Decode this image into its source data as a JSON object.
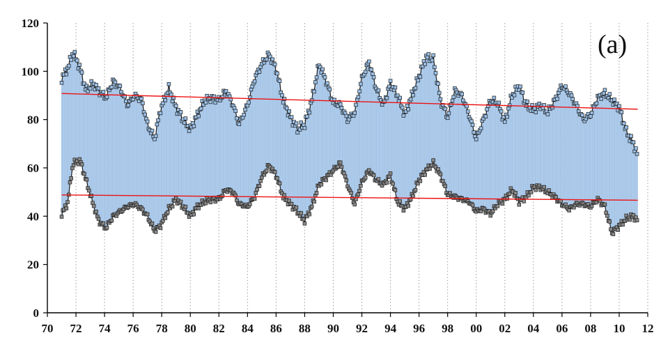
{
  "chart_data": {
    "type": "line",
    "title": "",
    "panel_label": "(a)",
    "xlabel": "",
    "ylabel": "",
    "xlim": [
      1970,
      2012
    ],
    "ylim": [
      0,
      120
    ],
    "x_ticks": [
      1970,
      1972,
      1974,
      1976,
      1978,
      1980,
      1982,
      1984,
      1986,
      1988,
      1990,
      1992,
      1994,
      1996,
      1998,
      2000,
      2002,
      2004,
      2006,
      2008,
      2010,
      2012
    ],
    "x_tick_labels": [
      "70",
      "72",
      "74",
      "76",
      "78",
      "80",
      "82",
      "84",
      "86",
      "88",
      "90",
      "92",
      "94",
      "96",
      "98",
      "00",
      "02",
      "04",
      "06",
      "08",
      "10",
      "12"
    ],
    "y_ticks": [
      0,
      20,
      40,
      60,
      80,
      100,
      120
    ],
    "y_tick_labels": [
      "0",
      "20",
      "40",
      "60",
      "80",
      "100",
      "120"
    ],
    "grid": "vertical dotted lines at x ticks",
    "colors": {
      "upper_fill": "#aecdef",
      "upper_line": "#1a1a1a",
      "upper_marker": "#9cc0e6",
      "lower_marker": "#8a8a8a",
      "trend": "#ee1111",
      "axis": "#000000",
      "grid": "#9a9a9a"
    },
    "series": [
      {
        "name": "upper",
        "x": [
          1971.0,
          1971.4,
          1971.8,
          1972.3,
          1972.7,
          1973.2,
          1973.6,
          1974.1,
          1974.6,
          1975.1,
          1975.6,
          1976.1,
          1976.6,
          1977.0,
          1977.5,
          1977.9,
          1978.5,
          1979.0,
          1979.5,
          1980.0,
          1980.5,
          1981.0,
          1981.5,
          1982.0,
          1982.5,
          1983.0,
          1983.4,
          1984.0,
          1984.5,
          1985.0,
          1985.5,
          1986.0,
          1986.5,
          1987.0,
          1987.5,
          1988.0,
          1988.5,
          1989.0,
          1989.5,
          1990.0,
          1990.5,
          1991.0,
          1991.5,
          1992.0,
          1992.5,
          1993.0,
          1993.5,
          1994.0,
          1994.5,
          1995.0,
          1995.5,
          1996.0,
          1996.5,
          1997.0,
          1997.5,
          1998.0,
          1998.5,
          1999.0,
          1999.5,
          2000.0,
          2000.5,
          2001.0,
          2001.5,
          2002.0,
          2002.5,
          2003.0,
          2003.5,
          2004.0,
          2004.5,
          2005.0,
          2005.5,
          2006.0,
          2006.5,
          2007.0,
          2007.5,
          2008.0,
          2008.5,
          2009.0,
          2009.5,
          2010.0,
          2010.5,
          2011.0,
          2011.3
        ],
        "values": [
          97,
          101,
          108,
          101,
          92,
          95,
          92,
          89,
          96,
          93,
          86,
          90,
          88,
          78,
          72,
          84,
          93,
          85,
          80,
          76,
          82,
          88,
          89,
          88,
          92,
          86,
          78,
          86,
          97,
          103,
          107,
          101,
          88,
          81,
          76,
          78,
          88,
          103,
          96,
          87,
          86,
          80,
          83,
          97,
          104,
          93,
          86,
          95,
          90,
          82,
          90,
          98,
          106,
          105,
          88,
          81,
          92,
          90,
          82,
          72,
          80,
          88,
          87,
          79,
          90,
          94,
          86,
          84,
          86,
          83,
          88,
          94,
          91,
          86,
          80,
          82,
          89,
          91,
          88,
          85,
          75,
          70,
          65
        ]
      },
      {
        "name": "lower",
        "x": [
          1971.0,
          1971.4,
          1971.8,
          1972.3,
          1972.7,
          1973.2,
          1973.6,
          1974.1,
          1974.6,
          1975.1,
          1975.6,
          1976.1,
          1976.6,
          1977.0,
          1977.5,
          1977.9,
          1978.5,
          1979.0,
          1979.5,
          1980.0,
          1980.5,
          1981.0,
          1981.5,
          1982.0,
          1982.5,
          1983.0,
          1983.4,
          1984.0,
          1984.5,
          1985.0,
          1985.5,
          1986.0,
          1986.5,
          1987.0,
          1987.5,
          1988.0,
          1988.5,
          1989.0,
          1989.5,
          1990.0,
          1990.5,
          1991.0,
          1991.5,
          1992.0,
          1992.5,
          1993.0,
          1993.5,
          1994.0,
          1994.5,
          1995.0,
          1995.5,
          1996.0,
          1996.5,
          1997.0,
          1997.5,
          1998.0,
          1998.5,
          1999.0,
          1999.5,
          2000.0,
          2000.5,
          2001.0,
          2001.5,
          2002.0,
          2002.5,
          2003.0,
          2003.5,
          2004.0,
          2004.5,
          2005.0,
          2005.5,
          2006.0,
          2006.5,
          2007.0,
          2007.5,
          2008.0,
          2008.5,
          2009.0,
          2009.5,
          2010.0,
          2010.5,
          2011.0,
          2011.3
        ],
        "values": [
          41,
          45,
          62,
          63,
          55,
          45,
          38,
          35,
          40,
          42,
          44,
          45,
          43,
          40,
          34,
          36,
          43,
          47,
          44,
          40,
          44,
          46,
          47,
          47,
          51,
          50,
          45,
          44,
          48,
          56,
          61,
          57,
          48,
          45,
          42,
          38,
          44,
          53,
          56,
          59,
          62,
          53,
          45,
          54,
          59,
          55,
          53,
          57,
          46,
          43,
          48,
          55,
          59,
          62,
          57,
          49,
          48,
          47,
          46,
          42,
          43,
          41,
          45,
          47,
          51,
          46,
          48,
          52,
          52,
          50,
          48,
          45,
          43,
          45,
          45,
          44,
          47,
          44,
          33,
          36,
          39,
          40,
          38
        ]
      },
      {
        "name": "upper_trend",
        "x": [
          1971.0,
          2011.3
        ],
        "values": [
          90.8,
          84.3
        ]
      },
      {
        "name": "lower_trend",
        "x": [
          1971.0,
          2011.3
        ],
        "values": [
          48.8,
          46.6
        ]
      }
    ]
  }
}
